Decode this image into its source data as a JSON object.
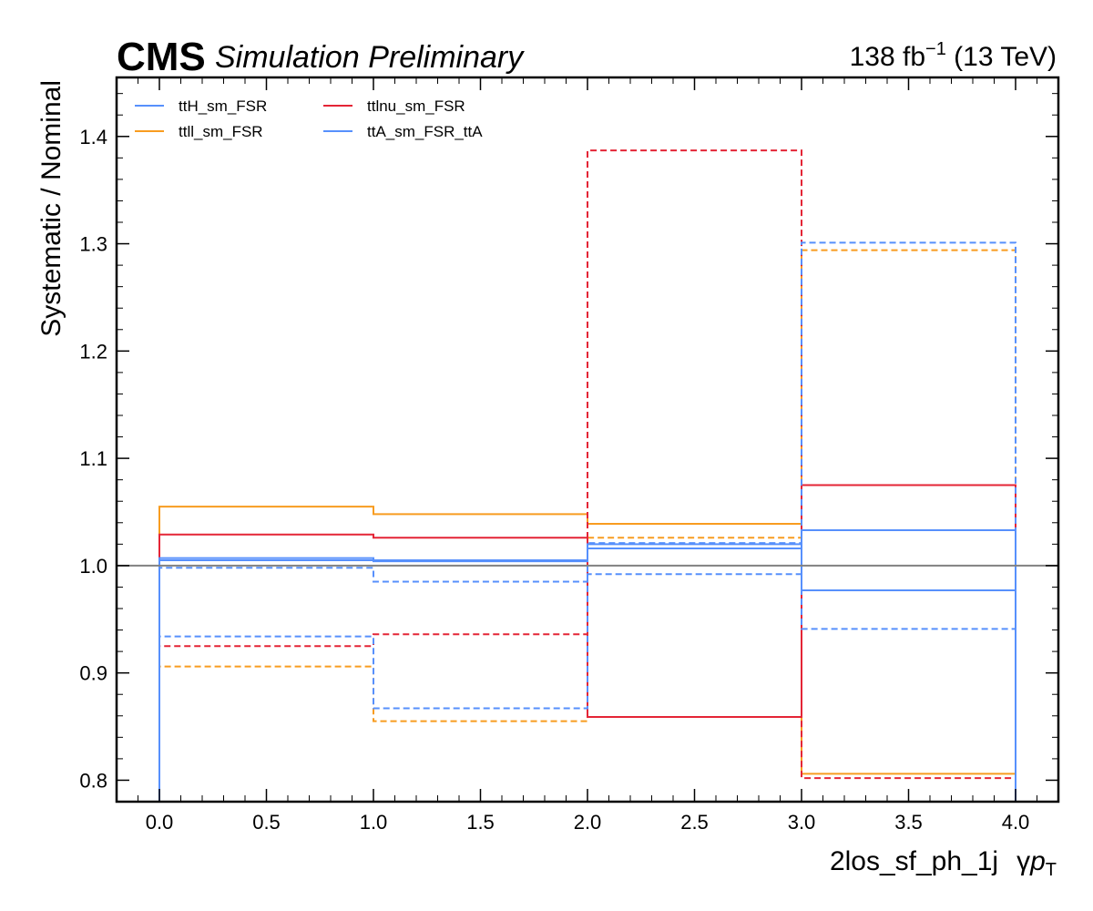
{
  "header": {
    "experiment": "CMS",
    "status": "Simulation Preliminary",
    "lumi_value": "138 fb",
    "lumi_exp": "−1",
    "energy": " (13 TeV)"
  },
  "chart_data": {
    "type": "line",
    "step": true,
    "xlabel_main": "2los_sf_ph_1j",
    "xlabel_var": "γ",
    "xlabel_var_p": "p",
    "xlabel_var_sub": "T",
    "ylabel": "Systematic / Nominal",
    "xlim": [
      -0.2,
      4.2
    ],
    "ylim": [
      0.78,
      1.455
    ],
    "xticks": [
      0.0,
      0.5,
      1.0,
      1.5,
      2.0,
      2.5,
      3.0,
      3.5,
      4.0
    ],
    "xtick_labels": [
      "0.0",
      "0.5",
      "1.0",
      "1.5",
      "2.0",
      "2.5",
      "3.0",
      "3.5",
      "4.0"
    ],
    "yticks": [
      0.8,
      0.9,
      1.0,
      1.1,
      1.2,
      1.3,
      1.4
    ],
    "ytick_labels": [
      "0.8",
      "0.9",
      "1.0",
      "1.1",
      "1.2",
      "1.3",
      "1.4"
    ],
    "reference_line": 1.0,
    "bin_edges": [
      0,
      1,
      2,
      3,
      4
    ],
    "legend_position": "top-left",
    "legend": [
      {
        "label": "ttH_sm_FSR",
        "color": "#5790fc"
      },
      {
        "label": "ttll_sm_FSR",
        "color": "#f89c20"
      },
      {
        "label": "ttlnu_sm_FSR",
        "color": "#e42536"
      },
      {
        "label": "ttA_sm_FSR_ttA",
        "color": "#5790fc"
      }
    ],
    "series": [
      {
        "name": "ttll_sm_FSR",
        "variation": "up",
        "color": "#f89c20",
        "dashed": false,
        "values": [
          1.055,
          1.048,
          1.039,
          0.806
        ]
      },
      {
        "name": "ttll_sm_FSR",
        "variation": "down",
        "color": "#f89c20",
        "dashed": true,
        "values": [
          0.906,
          0.855,
          1.026,
          1.294
        ]
      },
      {
        "name": "ttlnu_sm_FSR",
        "variation": "up",
        "color": "#e42536",
        "dashed": false,
        "values": [
          1.029,
          1.026,
          0.859,
          1.075
        ]
      },
      {
        "name": "ttlnu_sm_FSR",
        "variation": "down",
        "color": "#e42536",
        "dashed": true,
        "values": [
          0.925,
          0.936,
          1.387,
          0.802
        ]
      },
      {
        "name": "ttH_sm_FSR",
        "variation": "up",
        "color": "#5790fc",
        "dashed": false,
        "values": [
          1.007,
          1.005,
          1.016,
          1.033
        ]
      },
      {
        "name": "ttH_sm_FSR",
        "variation": "down",
        "color": "#5790fc",
        "dashed": true,
        "values": [
          0.998,
          0.985,
          0.992,
          0.941
        ]
      },
      {
        "name": "ttA_sm_FSR_ttA",
        "variation": "up",
        "color": "#5790fc",
        "dashed": false,
        "values": [
          1.005,
          1.004,
          1.02,
          0.977
        ]
      },
      {
        "name": "ttA_sm_FSR_ttA",
        "variation": "down",
        "color": "#5790fc",
        "dashed": true,
        "values": [
          0.934,
          0.867,
          1.021,
          1.301
        ]
      }
    ]
  }
}
